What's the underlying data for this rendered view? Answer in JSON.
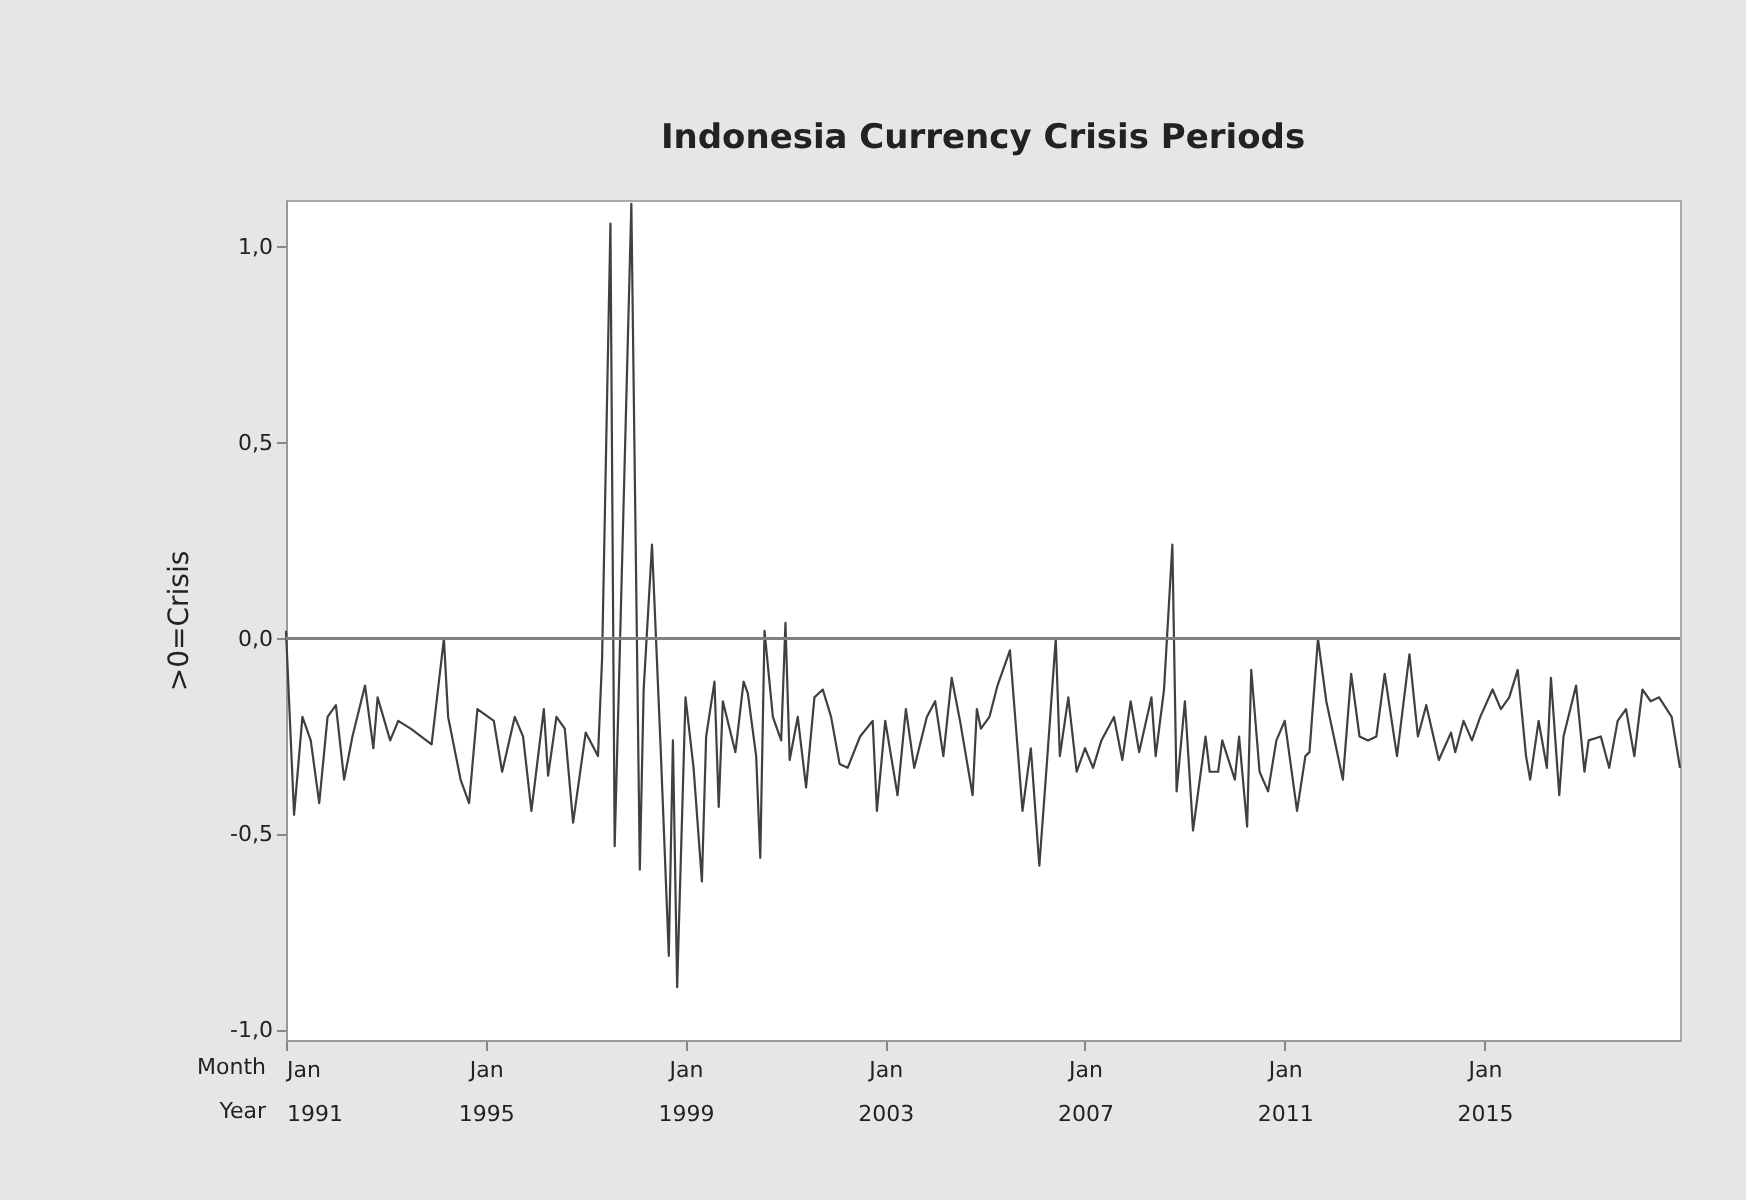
{
  "chart_data": {
    "type": "line",
    "title": "Indonesia Currency Crisis Periods",
    "ylabel": ">0=Crisis",
    "x": [
      "1991-01",
      "1991-03",
      "1991-05",
      "1991-07",
      "1991-09",
      "1991-11",
      "1992-01",
      "1992-03",
      "1992-05",
      "1992-08",
      "1992-10",
      "1992-11",
      "1993-02",
      "1993-04",
      "1993-07",
      "1993-12",
      "1994-03",
      "1994-04",
      "1994-07",
      "1994-09",
      "1994-11",
      "1995-03",
      "1995-05",
      "1995-08",
      "1995-10",
      "1995-12",
      "1996-03",
      "1996-04",
      "1996-06",
      "1996-08",
      "1996-10",
      "1997-01",
      "1997-04",
      "1997-05",
      "1997-07",
      "1997-08",
      "1997-09",
      "1997-12",
      "1998-02",
      "1998-03",
      "1998-05",
      "1998-07",
      "1998-09",
      "1998-10",
      "1998-11",
      "1999-01",
      "1999-03",
      "1999-05",
      "1999-06",
      "1999-08",
      "1999-09",
      "1999-10",
      "2000-01",
      "2000-03",
      "2000-04",
      "2000-06",
      "2000-07",
      "2000-08",
      "2000-10",
      "2000-12",
      "2001-01",
      "2001-02",
      "2001-04",
      "2001-06",
      "2001-08",
      "2001-10",
      "2001-12",
      "2002-02",
      "2002-04",
      "2002-07",
      "2002-10",
      "2002-11",
      "2003-01",
      "2003-04",
      "2003-06",
      "2003-08",
      "2003-11",
      "2004-01",
      "2004-03",
      "2004-05",
      "2004-07",
      "2004-10",
      "2004-11",
      "2004-12",
      "2005-02",
      "2005-04",
      "2005-07",
      "2005-10",
      "2005-12",
      "2006-02",
      "2006-04",
      "2006-06",
      "2006-07",
      "2006-09",
      "2006-11",
      "2007-01",
      "2007-03",
      "2007-05",
      "2007-08",
      "2007-10",
      "2007-12",
      "2008-02",
      "2008-05",
      "2008-06",
      "2008-08",
      "2008-10",
      "2008-11",
      "2009-01",
      "2009-03",
      "2009-06",
      "2009-07",
      "2009-09",
      "2009-10",
      "2010-01",
      "2010-02",
      "2010-04",
      "2010-05",
      "2010-07",
      "2010-09",
      "2010-11",
      "2011-01",
      "2011-04",
      "2011-06",
      "2011-07",
      "2011-09",
      "2011-11",
      "2012-01",
      "2012-03",
      "2012-05",
      "2012-07",
      "2012-09",
      "2012-11",
      "2013-01",
      "2013-04",
      "2013-07",
      "2013-09",
      "2013-11",
      "2014-02",
      "2014-05",
      "2014-06",
      "2014-08",
      "2014-10",
      "2014-12",
      "2015-03",
      "2015-05",
      "2015-07",
      "2015-09",
      "2015-11",
      "2015-12",
      "2016-02",
      "2016-04",
      "2016-05",
      "2016-07",
      "2016-08",
      "2016-11",
      "2017-01",
      "2017-02",
      "2017-05",
      "2017-07",
      "2017-09",
      "2017-11",
      "2018-01",
      "2018-03",
      "2018-05",
      "2018-07",
      "2018-10",
      "2018-12"
    ],
    "series": [
      {
        "color": "#404040",
        "values": [
          0.02,
          -0.45,
          -0.2,
          -0.26,
          -0.42,
          -0.2,
          -0.17,
          -0.36,
          -0.25,
          -0.12,
          -0.28,
          -0.15,
          -0.26,
          -0.21,
          -0.23,
          -0.27,
          0.0,
          -0.2,
          -0.36,
          -0.42,
          -0.18,
          -0.21,
          -0.34,
          -0.2,
          -0.25,
          -0.44,
          -0.18,
          -0.35,
          -0.2,
          -0.23,
          -0.47,
          -0.24,
          -0.3,
          -0.05,
          1.06,
          -0.53,
          -0.12,
          1.11,
          -0.59,
          -0.13,
          0.24,
          -0.26,
          -0.81,
          -0.26,
          -0.89,
          -0.15,
          -0.33,
          -0.62,
          -0.25,
          -0.11,
          -0.43,
          -0.16,
          -0.29,
          -0.11,
          -0.14,
          -0.3,
          -0.56,
          0.02,
          -0.2,
          -0.26,
          0.04,
          -0.31,
          -0.2,
          -0.38,
          -0.15,
          -0.13,
          -0.2,
          -0.32,
          -0.33,
          -0.25,
          -0.21,
          -0.44,
          -0.21,
          -0.4,
          -0.18,
          -0.33,
          -0.2,
          -0.16,
          -0.3,
          -0.1,
          -0.21,
          -0.4,
          -0.18,
          -0.23,
          -0.2,
          -0.12,
          -0.03,
          -0.44,
          -0.28,
          -0.58,
          -0.3,
          0.0,
          -0.3,
          -0.15,
          -0.34,
          -0.28,
          -0.33,
          -0.26,
          -0.2,
          -0.31,
          -0.16,
          -0.29,
          -0.15,
          -0.3,
          -0.13,
          0.24,
          -0.39,
          -0.16,
          -0.49,
          -0.25,
          -0.34,
          -0.34,
          -0.26,
          -0.36,
          -0.25,
          -0.48,
          -0.08,
          -0.34,
          -0.39,
          -0.26,
          -0.21,
          -0.44,
          -0.3,
          -0.29,
          0.0,
          -0.16,
          -0.26,
          -0.36,
          -0.09,
          -0.25,
          -0.26,
          -0.25,
          -0.09,
          -0.3,
          -0.04,
          -0.25,
          -0.17,
          -0.31,
          -0.24,
          -0.29,
          -0.21,
          -0.26,
          -0.2,
          -0.13,
          -0.18,
          -0.15,
          -0.08,
          -0.3,
          -0.36,
          -0.21,
          -0.33,
          -0.1,
          -0.4,
          -0.25,
          -0.12,
          -0.34,
          -0.26,
          -0.25,
          -0.33,
          -0.21,
          -0.18,
          -0.3,
          -0.13,
          -0.16,
          -0.15,
          -0.2,
          -0.33
        ]
      }
    ],
    "xlim": [
      "1991-01",
      "2018-12"
    ],
    "xticks": [
      {
        "value": "1991-01",
        "label": "Jan 1991"
      },
      {
        "value": "1995-01",
        "label": "Jan 1995"
      },
      {
        "value": "1999-01",
        "label": "Jan 1999"
      },
      {
        "value": "2003-01",
        "label": "Jan 2003"
      },
      {
        "value": "2007-01",
        "label": "Jan 2007"
      },
      {
        "value": "2011-01",
        "label": "Jan 2011"
      },
      {
        "value": "2015-01",
        "label": "Jan 2015"
      }
    ],
    "ylim": [
      -1.025,
      1.12
    ],
    "yticks": [
      {
        "value": -1.0,
        "label": "-1,0"
      },
      {
        "value": -0.5,
        "label": "-0,5"
      },
      {
        "value": 0.0,
        "label": "0,0"
      },
      {
        "value": 0.5,
        "label": "0,5"
      },
      {
        "value": 1.0,
        "label": "1,0"
      }
    ],
    "ref_lines": [
      {
        "axis": "y",
        "value": 0.0,
        "color": "#808080"
      }
    ],
    "annotations": [
      "Month",
      "Year"
    ],
    "grid": false
  }
}
